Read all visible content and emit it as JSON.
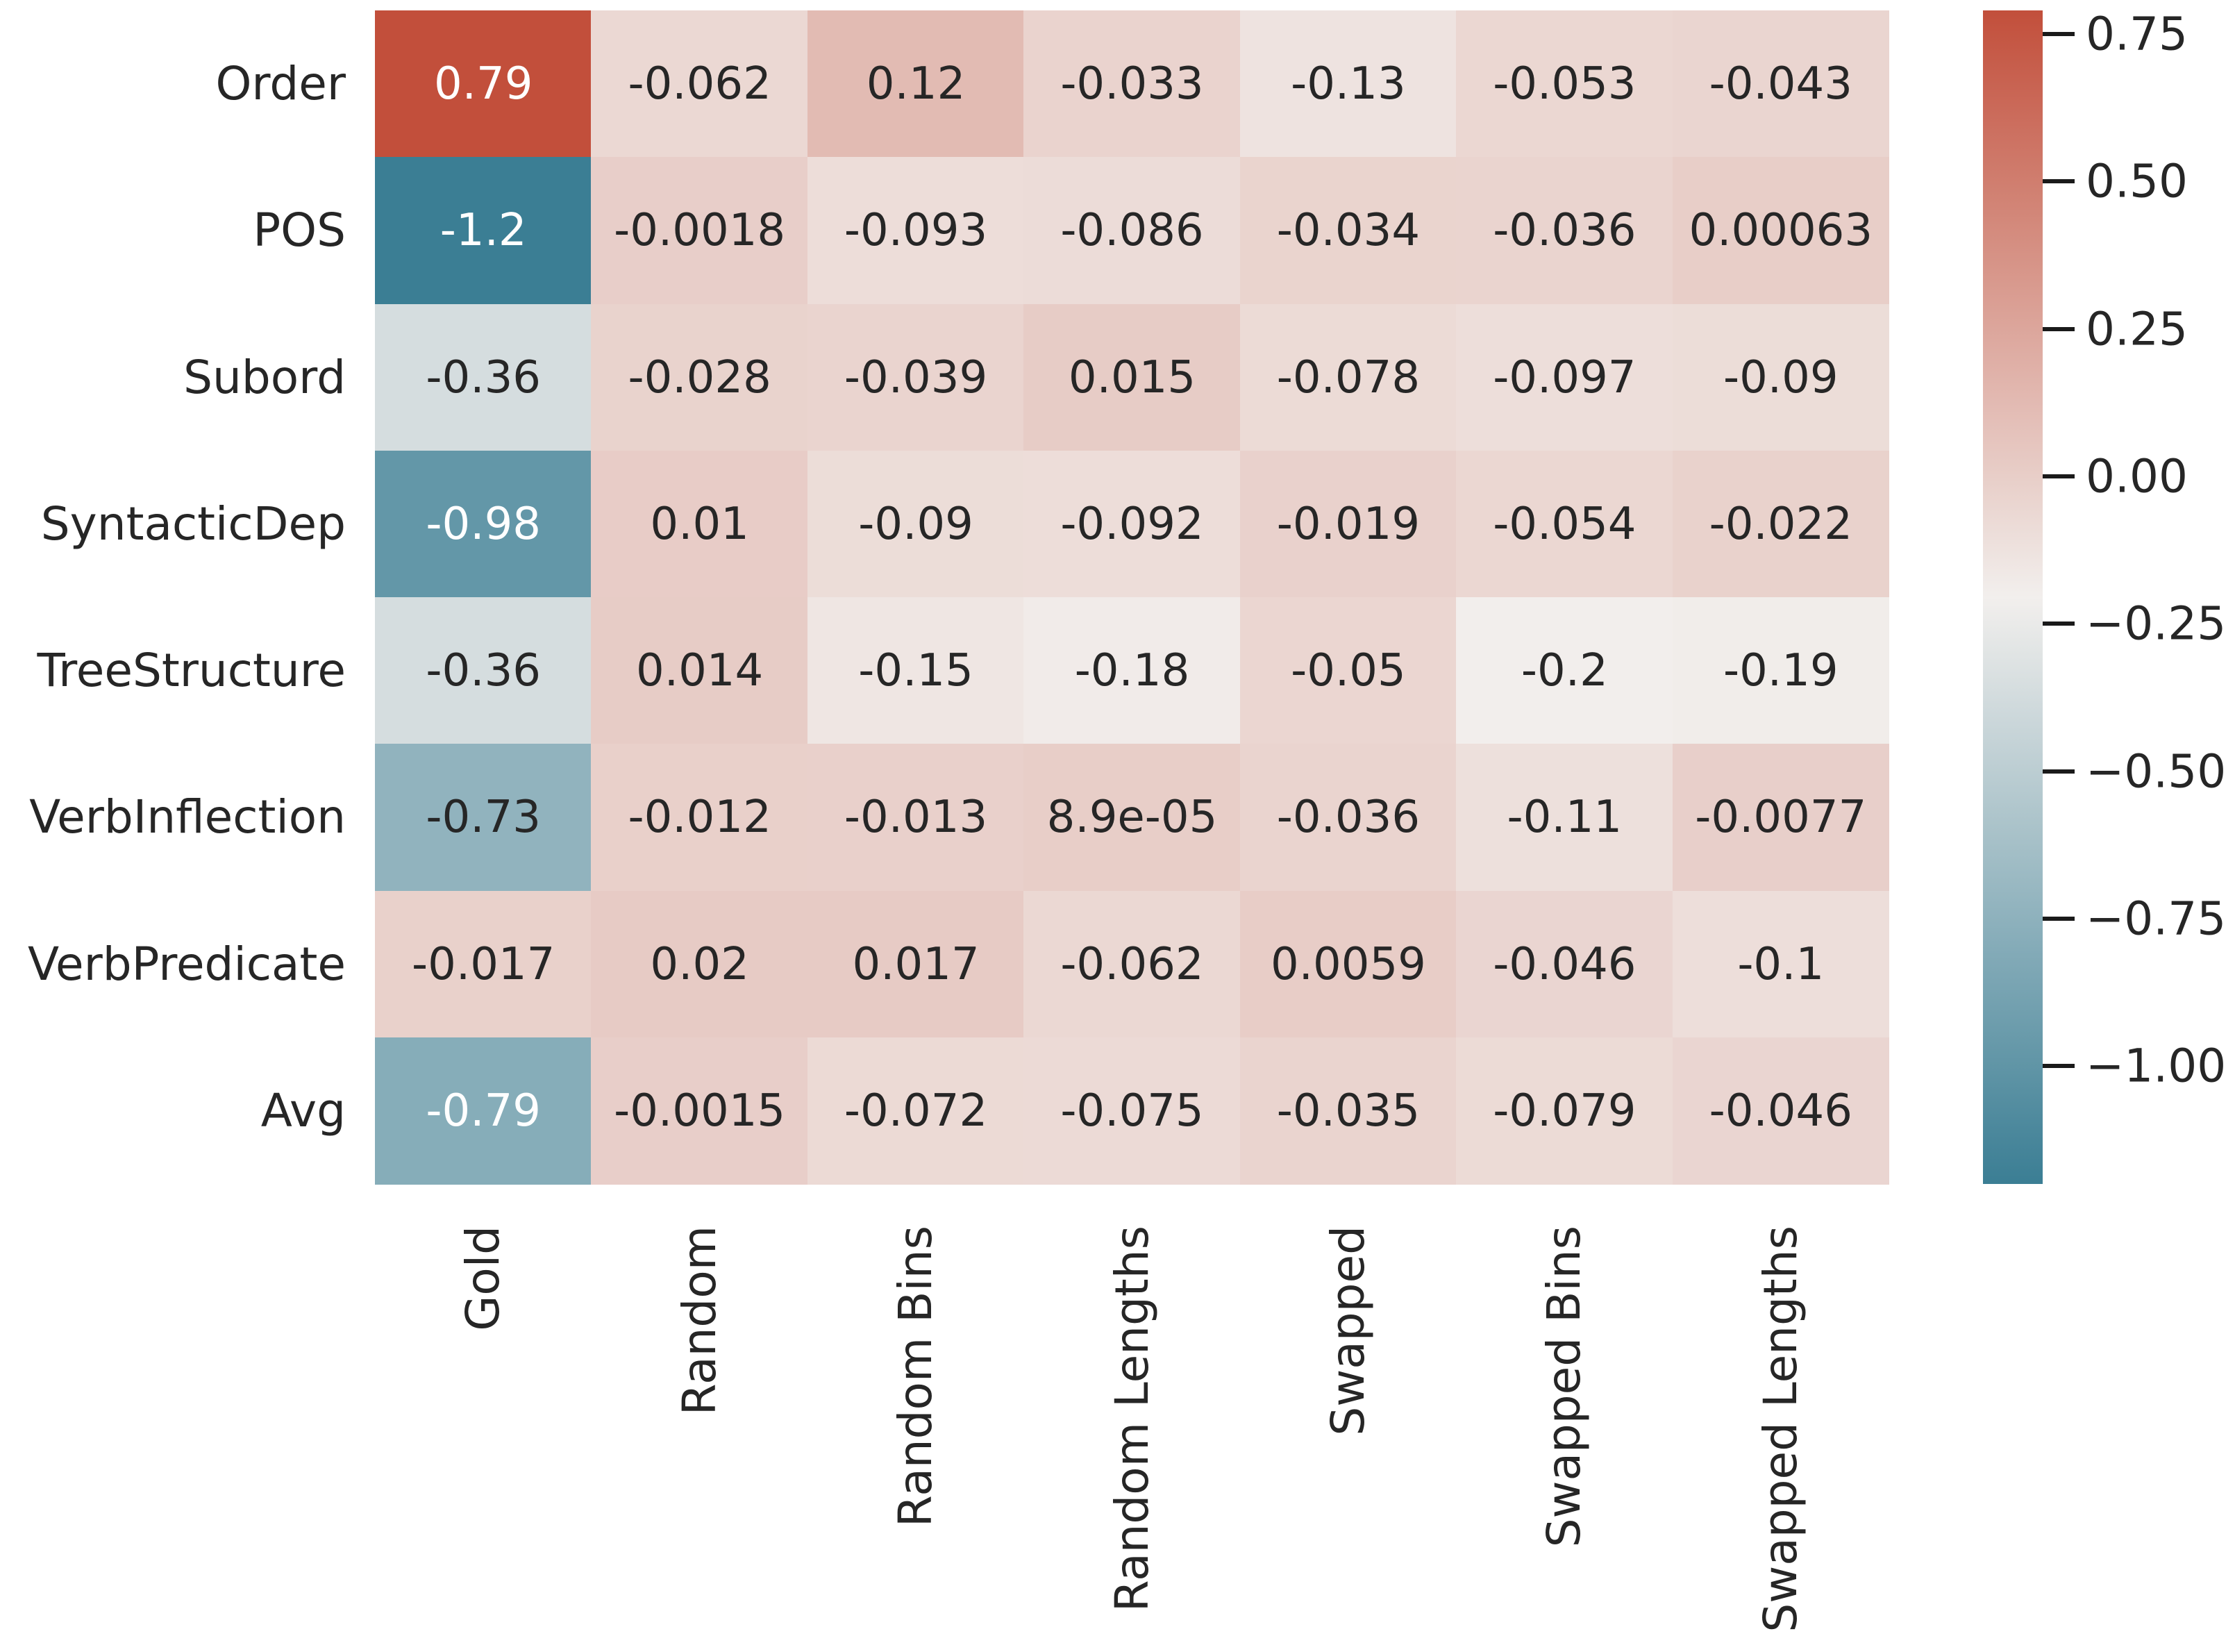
{
  "chart_data": {
    "type": "heatmap",
    "rows": [
      "Order",
      "POS",
      "Subord",
      "SyntacticDep",
      "TreeStructure",
      "VerbInflection",
      "VerbPredicate",
      "Avg"
    ],
    "columns": [
      "Gold",
      "Random",
      "Random Bins",
      "Random Lengths",
      "Swapped",
      "Swapped Bins",
      "Swapped Lengths"
    ],
    "cell_labels": [
      [
        "0.79",
        "-0.062",
        "0.12",
        "-0.033",
        "-0.13",
        "-0.053",
        "-0.043"
      ],
      [
        "-1.2",
        "-0.0018",
        "-0.093",
        "-0.086",
        "-0.034",
        "-0.036",
        "0.00063"
      ],
      [
        "-0.36",
        "-0.028",
        "-0.039",
        "0.015",
        "-0.078",
        "-0.097",
        "-0.09"
      ],
      [
        "-0.98",
        "0.01",
        "-0.09",
        "-0.092",
        "-0.019",
        "-0.054",
        "-0.022"
      ],
      [
        "-0.36",
        "0.014",
        "-0.15",
        "-0.18",
        "-0.05",
        "-0.2",
        "-0.19"
      ],
      [
        "-0.73",
        "-0.012",
        "-0.013",
        "8.9e-05",
        "-0.036",
        "-0.11",
        "-0.0077"
      ],
      [
        "-0.017",
        "0.02",
        "0.017",
        "-0.062",
        "0.0059",
        "-0.046",
        "-0.1"
      ],
      [
        "-0.79",
        "-0.0015",
        "-0.072",
        "-0.075",
        "-0.035",
        "-0.079",
        "-0.046"
      ]
    ],
    "values": [
      [
        0.79,
        -0.062,
        0.12,
        -0.033,
        -0.13,
        -0.053,
        -0.043
      ],
      [
        -1.2,
        -0.0018,
        -0.093,
        -0.086,
        -0.034,
        -0.036,
        0.00063
      ],
      [
        -0.36,
        -0.028,
        -0.039,
        0.015,
        -0.078,
        -0.097,
        -0.09
      ],
      [
        -0.98,
        0.01,
        -0.09,
        -0.092,
        -0.019,
        -0.054,
        -0.022
      ],
      [
        -0.36,
        0.014,
        -0.15,
        -0.18,
        -0.05,
        -0.2,
        -0.19
      ],
      [
        -0.73,
        -0.012,
        -0.013,
        8.9e-05,
        -0.036,
        -0.11,
        -0.0077
      ],
      [
        -0.017,
        0.02,
        0.017,
        -0.062,
        0.0059,
        -0.046,
        -0.1
      ],
      [
        -0.79,
        -0.0015,
        -0.072,
        -0.075,
        -0.035,
        -0.079,
        -0.046
      ]
    ],
    "color_scale": {
      "vmin": -1.2,
      "vmax": 0.79,
      "min_color": "#3b7e94",
      "center_color": "#f2efed",
      "max_color": "#c24f3b",
      "dark_text_color": "#262626",
      "light_text_color": "#ffffff"
    },
    "legend_position": "right",
    "grid": false,
    "colorbar_ticks": [
      {
        "label": "0.75",
        "value": 0.75
      },
      {
        "label": "0.50",
        "value": 0.5
      },
      {
        "label": "0.25",
        "value": 0.25
      },
      {
        "label": "0.00",
        "value": 0.0
      },
      {
        "label": "−0.25",
        "value": -0.25
      },
      {
        "label": "−0.50",
        "value": -0.5
      },
      {
        "label": "−0.75",
        "value": -0.75
      },
      {
        "label": "−1.00",
        "value": -1.0
      }
    ]
  }
}
